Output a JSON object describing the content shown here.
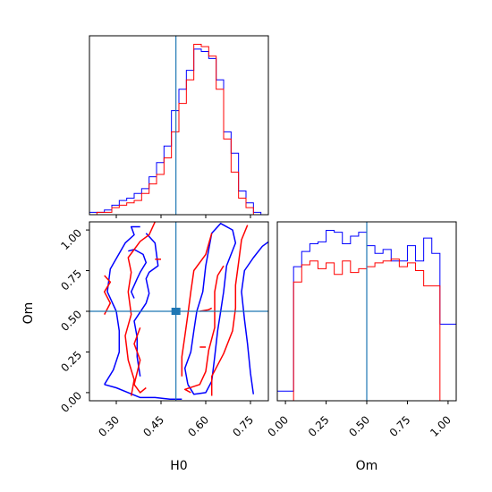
{
  "chart_data": [
    {
      "type": "histogram",
      "panel": "H0 marginal",
      "x_range": [
        0.21,
        0.81
      ],
      "truth": 0.5,
      "bin_edges": [
        0.21,
        0.235,
        0.26,
        0.285,
        0.31,
        0.335,
        0.36,
        0.385,
        0.41,
        0.435,
        0.46,
        0.485,
        0.51,
        0.535,
        0.56,
        0.585,
        0.61,
        0.635,
        0.66,
        0.685,
        0.71,
        0.735,
        0.76,
        0.785,
        0.81
      ],
      "series": [
        {
          "color": "#0000ff",
          "values": [
            1,
            1,
            2,
            4,
            6,
            7,
            9,
            11,
            16,
            22,
            29,
            44,
            53,
            61,
            70,
            69,
            66,
            57,
            35,
            26,
            10,
            5,
            1,
            0
          ]
        },
        {
          "color": "#ff0000",
          "values": [
            0,
            1,
            1,
            3,
            4,
            5,
            6,
            9,
            13,
            17,
            24,
            35,
            47,
            57,
            72,
            71,
            67,
            53,
            32,
            18,
            7,
            3,
            0,
            0
          ]
        }
      ]
    },
    {
      "type": "contour",
      "panel": "H0 vs Om",
      "xlabel": "H0",
      "ylabel": "Om",
      "xlim": [
        0.21,
        0.81
      ],
      "ylim": [
        -0.05,
        1.05
      ],
      "x_ticks": [
        "0.30",
        "0.45",
        "0.60",
        "0.75"
      ],
      "y_ticks": [
        "0.00",
        "0.25",
        "0.50",
        "0.75",
        "1.00"
      ],
      "truth": [
        0.5,
        0.5
      ],
      "series": [
        {
          "color": "#0000ff",
          "contours": [
            [
              [
                0.26,
                0.05
              ],
              [
                0.3,
                0.03
              ],
              [
                0.34,
                0.0
              ],
              [
                0.38,
                -0.03
              ],
              [
                0.43,
                -0.03
              ],
              [
                0.48,
                -0.04
              ],
              [
                0.52,
                -0.04
              ]
            ],
            [
              [
                0.26,
                0.05
              ],
              [
                0.29,
                0.14
              ],
              [
                0.31,
                0.25
              ],
              [
                0.31,
                0.38
              ],
              [
                0.3,
                0.5
              ],
              [
                0.27,
                0.62
              ],
              [
                0.28,
                0.76
              ],
              [
                0.33,
                0.92
              ],
              [
                0.36,
                0.97
              ],
              [
                0.35,
                1.02
              ],
              [
                0.38,
                1.02
              ]
            ],
            [
              [
                0.4,
                0.98
              ],
              [
                0.43,
                0.92
              ],
              [
                0.44,
                0.78
              ],
              [
                0.41,
                0.74
              ],
              [
                0.4,
                0.7
              ],
              [
                0.41,
                0.61
              ],
              [
                0.4,
                0.55
              ],
              [
                0.36,
                0.44
              ],
              [
                0.37,
                0.34
              ],
              [
                0.37,
                0.22
              ],
              [
                0.38,
                0.1
              ]
            ],
            [
              [
                0.34,
                0.87
              ],
              [
                0.36,
                0.88
              ],
              [
                0.39,
                0.85
              ],
              [
                0.4,
                0.8
              ],
              [
                0.38,
                0.74
              ],
              [
                0.37,
                0.7
              ],
              [
                0.36,
                0.66
              ],
              [
                0.35,
                0.62
              ],
              [
                0.36,
                0.58
              ]
            ],
            [
              [
                0.54,
                0.05
              ],
              [
                0.53,
                0.15
              ],
              [
                0.55,
                0.25
              ],
              [
                0.56,
                0.38
              ],
              [
                0.57,
                0.5
              ],
              [
                0.59,
                0.62
              ],
              [
                0.6,
                0.78
              ],
              [
                0.62,
                0.98
              ],
              [
                0.65,
                1.04
              ],
              [
                0.69,
                1.0
              ],
              [
                0.7,
                0.92
              ],
              [
                0.67,
                0.78
              ],
              [
                0.66,
                0.62
              ],
              [
                0.65,
                0.5
              ],
              [
                0.64,
                0.38
              ],
              [
                0.63,
                0.22
              ],
              [
                0.62,
                0.07
              ],
              [
                0.6,
                0.0
              ],
              [
                0.56,
                -0.01
              ],
              [
                0.54,
                0.05
              ]
            ],
            [
              [
                0.76,
                -0.01
              ],
              [
                0.75,
                0.12
              ],
              [
                0.74,
                0.3
              ],
              [
                0.73,
                0.45
              ],
              [
                0.72,
                0.62
              ],
              [
                0.73,
                0.75
              ],
              [
                0.76,
                0.83
              ],
              [
                0.79,
                0.9
              ],
              [
                0.82,
                0.94
              ]
            ]
          ]
        },
        {
          "color": "#ff0000",
          "contours": [
            [
              [
                0.35,
                -0.02
              ],
              [
                0.36,
                0.08
              ],
              [
                0.34,
                0.2
              ],
              [
                0.33,
                0.35
              ],
              [
                0.35,
                0.48
              ],
              [
                0.34,
                0.62
              ],
              [
                0.35,
                0.74
              ],
              [
                0.34,
                0.83
              ],
              [
                0.38,
                0.93
              ],
              [
                0.41,
                0.97
              ],
              [
                0.43,
                1.05
              ]
            ],
            [
              [
                0.26,
                0.72
              ],
              [
                0.28,
                0.68
              ],
              [
                0.26,
                0.62
              ],
              [
                0.28,
                0.55
              ],
              [
                0.26,
                0.48
              ]
            ],
            [
              [
                0.38,
                0.4
              ],
              [
                0.36,
                0.3
              ],
              [
                0.38,
                0.2
              ],
              [
                0.36,
                0.05
              ],
              [
                0.38,
                0.0
              ],
              [
                0.4,
                0.03
              ]
            ],
            [
              [
                0.52,
                0.1
              ],
              [
                0.52,
                0.22
              ],
              [
                0.53,
                0.35
              ],
              [
                0.54,
                0.48
              ],
              [
                0.55,
                0.62
              ],
              [
                0.56,
                0.75
              ],
              [
                0.6,
                0.85
              ],
              [
                0.62,
                0.98
              ]
            ],
            [
              [
                0.55,
                0.0
              ],
              [
                0.53,
                0.02
              ],
              [
                0.58,
                0.05
              ],
              [
                0.6,
                0.13
              ],
              [
                0.61,
                0.26
              ],
              [
                0.63,
                0.4
              ],
              [
                0.63,
                0.55
              ],
              [
                0.63,
                0.62
              ],
              [
                0.64,
                0.72
              ],
              [
                0.66,
                0.78
              ]
            ],
            [
              [
                0.62,
                -0.02
              ],
              [
                0.62,
                0.1
              ],
              [
                0.66,
                0.24
              ],
              [
                0.69,
                0.38
              ],
              [
                0.7,
                0.52
              ],
              [
                0.7,
                0.66
              ],
              [
                0.71,
                0.8
              ],
              [
                0.72,
                0.94
              ],
              [
                0.74,
                1.03
              ]
            ],
            [
              [
                0.58,
                0.5
              ],
              [
                0.61,
                0.51
              ],
              [
                0.62,
                0.52
              ]
            ],
            [
              [
                0.43,
                0.82
              ],
              [
                0.45,
                0.82
              ]
            ],
            [
              [
                0.49,
                0.48
              ],
              [
                0.49,
                0.52
              ]
            ],
            [
              [
                0.58,
                0.28
              ],
              [
                0.6,
                0.28
              ]
            ]
          ]
        }
      ]
    },
    {
      "type": "histogram",
      "panel": "Om marginal",
      "xlabel": "Om",
      "x_range": [
        -0.05,
        1.05
      ],
      "x_ticks": [
        "0.00",
        "0.25",
        "0.50",
        "0.75",
        "1.00"
      ],
      "truth": 0.5,
      "bin_edges": [
        -0.05,
        0.0,
        0.05,
        0.1,
        0.15,
        0.2,
        0.25,
        0.3,
        0.35,
        0.4,
        0.45,
        0.5,
        0.55,
        0.6,
        0.65,
        0.7,
        0.75,
        0.8,
        0.85,
        0.9,
        0.95,
        1.0,
        1.05
      ],
      "series": [
        {
          "color": "#0000ff",
          "values": [
            5,
            5,
            70,
            78,
            82,
            83,
            89,
            88,
            82,
            86,
            88,
            81,
            77,
            79,
            73,
            73,
            81,
            73,
            85,
            77,
            40,
            40
          ]
        },
        {
          "color": "#ff0000",
          "values": [
            0,
            0,
            62,
            71,
            73,
            69,
            72,
            66,
            73,
            67,
            69,
            70,
            72,
            73,
            74,
            70,
            72,
            68,
            60,
            60,
            0,
            0
          ]
        }
      ]
    }
  ]
}
